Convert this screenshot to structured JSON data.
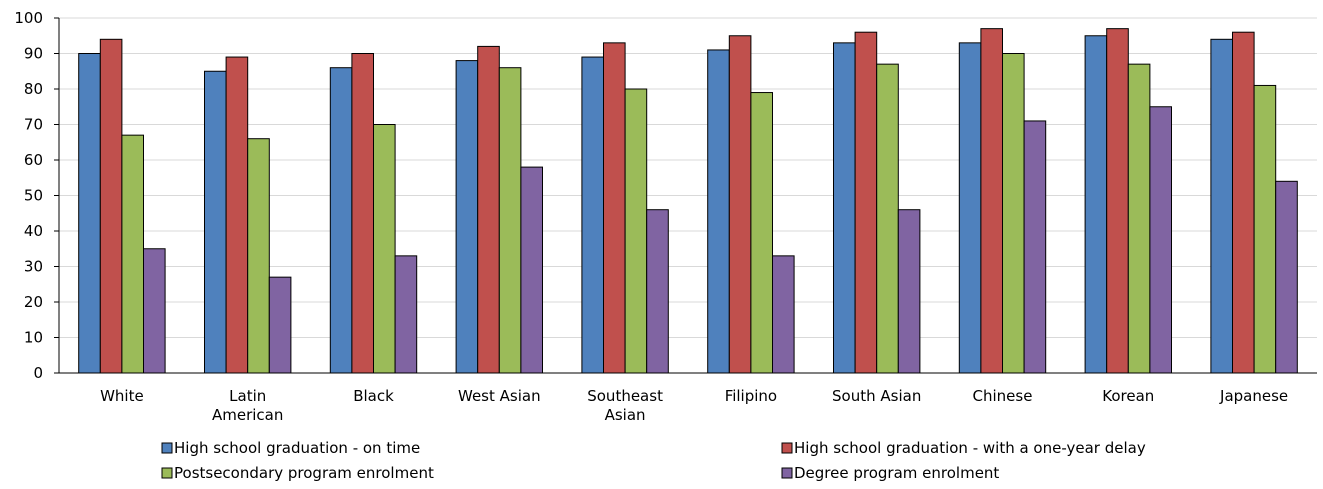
{
  "chart_data": {
    "type": "bar",
    "categories": [
      [
        "White"
      ],
      [
        "Latin",
        "American"
      ],
      [
        "Black"
      ],
      [
        "West Asian"
      ],
      [
        "Southeast",
        "Asian"
      ],
      [
        "Filipino"
      ],
      [
        "South Asian"
      ],
      [
        "Chinese"
      ],
      [
        "Korean"
      ],
      [
        "Japanese"
      ]
    ],
    "series": [
      {
        "name": "High school graduation - on time",
        "color": "#4f81bd",
        "values": [
          90,
          85,
          86,
          88,
          89,
          91,
          93,
          93,
          95,
          94
        ]
      },
      {
        "name": "High school graduation - with a one-year delay",
        "color": "#c0504d",
        "values": [
          94,
          89,
          90,
          92,
          93,
          95,
          96,
          97,
          97,
          96
        ]
      },
      {
        "name": "Postsecondary program enrolment",
        "color": "#9bbb59",
        "values": [
          67,
          66,
          70,
          86,
          80,
          79,
          87,
          90,
          87,
          81
        ]
      },
      {
        "name": "Degree program enrolment",
        "color": "#8064a2",
        "values": [
          35,
          27,
          33,
          58,
          46,
          33,
          46,
          71,
          75,
          54
        ]
      }
    ],
    "ylim": [
      0,
      100
    ],
    "yticks": [
      "0",
      "10",
      "20",
      "30",
      "40",
      "50",
      "60",
      "70",
      "80",
      "90",
      "100"
    ],
    "grid": true,
    "legend_position": "bottom",
    "title": "",
    "xlabel": "",
    "ylabel": ""
  }
}
